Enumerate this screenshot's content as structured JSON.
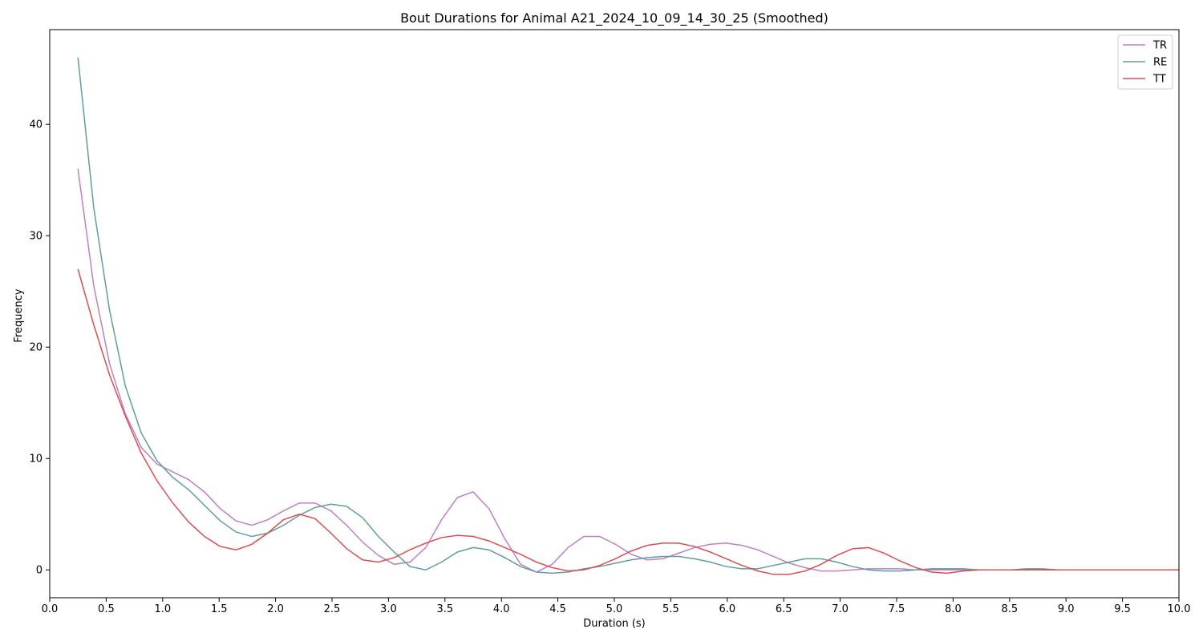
{
  "chart_data": {
    "type": "line",
    "title": "Bout Durations for Animal A21_2024_10_09_14_30_25 (Smoothed)",
    "xlabel": "Duration (s)",
    "ylabel": "Frequency",
    "xlim": [
      0,
      10
    ],
    "ylim": [
      -2.5,
      48.5
    ],
    "x_ticks": [
      "0.0",
      "0.5",
      "1.0",
      "1.5",
      "2.0",
      "2.5",
      "3.0",
      "3.5",
      "4.0",
      "4.5",
      "5.0",
      "5.5",
      "6.0",
      "6.5",
      "7.0",
      "7.5",
      "8.0",
      "8.5",
      "9.0",
      "9.5",
      "10.0"
    ],
    "y_ticks": [
      "0",
      "10",
      "20",
      "30",
      "40"
    ],
    "grid": false,
    "legend_position": "top-right",
    "x": [
      0.25,
      0.39,
      0.53,
      0.67,
      0.81,
      0.95,
      1.09,
      1.23,
      1.37,
      1.51,
      1.65,
      1.79,
      1.93,
      2.07,
      2.21,
      2.35,
      2.49,
      2.63,
      2.77,
      2.91,
      3.05,
      3.19,
      3.33,
      3.47,
      3.61,
      3.75,
      3.89,
      4.03,
      4.17,
      4.31,
      4.45,
      4.59,
      4.73,
      4.87,
      5.01,
      5.15,
      5.29,
      5.43,
      5.57,
      5.71,
      5.85,
      5.99,
      6.13,
      6.27,
      6.41,
      6.55,
      6.69,
      6.83,
      6.97,
      7.11,
      7.25,
      7.39,
      7.53,
      7.67,
      7.81,
      7.95,
      8.09,
      8.23,
      8.37,
      8.51,
      8.65,
      8.79,
      8.93,
      9.07,
      9.21,
      9.35,
      9.49,
      9.63,
      9.77,
      9.91,
      10.0
    ],
    "series": [
      {
        "name": "TR",
        "color": "#bf7fca",
        "values": [
          36,
          25.5,
          18.5,
          14,
          11,
          9.5,
          8.8,
          8.1,
          7,
          5.5,
          4.4,
          4,
          4.5,
          5.3,
          6,
          6,
          5.3,
          4,
          2.5,
          1.3,
          0.5,
          0.7,
          2,
          4.5,
          6.5,
          7,
          5.5,
          2.8,
          0.5,
          -0.2,
          0.5,
          2,
          3,
          3,
          2.3,
          1.4,
          0.9,
          1,
          1.5,
          2,
          2.3,
          2.4,
          2.2,
          1.8,
          1.2,
          0.6,
          0.2,
          -0.1,
          -0.1,
          0,
          0.1,
          0.1,
          0.1,
          0,
          0,
          0,
          0,
          0,
          0,
          0,
          0,
          0,
          0,
          0,
          0,
          0,
          0,
          0,
          0,
          0,
          0
        ]
      },
      {
        "name": "RE",
        "color": "#5f9ea0",
        "values": [
          46,
          32.5,
          23.3,
          16.5,
          12.3,
          9.8,
          8.3,
          7.2,
          5.8,
          4.4,
          3.4,
          3,
          3.3,
          4,
          4.9,
          5.6,
          5.9,
          5.7,
          4.7,
          3,
          1.6,
          0.3,
          0,
          0.7,
          1.6,
          2,
          1.8,
          1.1,
          0.3,
          -0.2,
          -0.3,
          -0.2,
          0.1,
          0.3,
          0.6,
          0.9,
          1.1,
          1.2,
          1.2,
          1,
          0.7,
          0.3,
          0.1,
          0.1,
          0.4,
          0.7,
          1,
          1,
          0.7,
          0.3,
          0,
          -0.1,
          -0.1,
          0,
          0.1,
          0.1,
          0.1,
          0,
          0,
          0,
          0.1,
          0.1,
          0,
          0,
          0,
          0,
          0,
          0,
          0,
          0,
          0
        ]
      },
      {
        "name": "TT",
        "color": "#dc4e4e",
        "values": [
          27,
          22,
          17.5,
          13.8,
          10.5,
          8,
          6,
          4.3,
          3,
          2.1,
          1.8,
          2.3,
          3.3,
          4.5,
          5,
          4.6,
          3.3,
          1.9,
          0.9,
          0.7,
          1.1,
          1.8,
          2.4,
          2.9,
          3.1,
          3,
          2.6,
          2,
          1.4,
          0.7,
          0.2,
          -0.1,
          0,
          0.4,
          1,
          1.7,
          2.2,
          2.4,
          2.4,
          2.1,
          1.6,
          1,
          0.4,
          -0.1,
          -0.4,
          -0.4,
          -0.1,
          0.5,
          1.3,
          1.9,
          2,
          1.5,
          0.8,
          0.2,
          -0.2,
          -0.3,
          -0.1,
          0,
          0,
          0,
          0,
          0,
          0,
          0,
          0,
          0,
          0,
          0,
          0,
          0,
          0
        ]
      }
    ]
  }
}
